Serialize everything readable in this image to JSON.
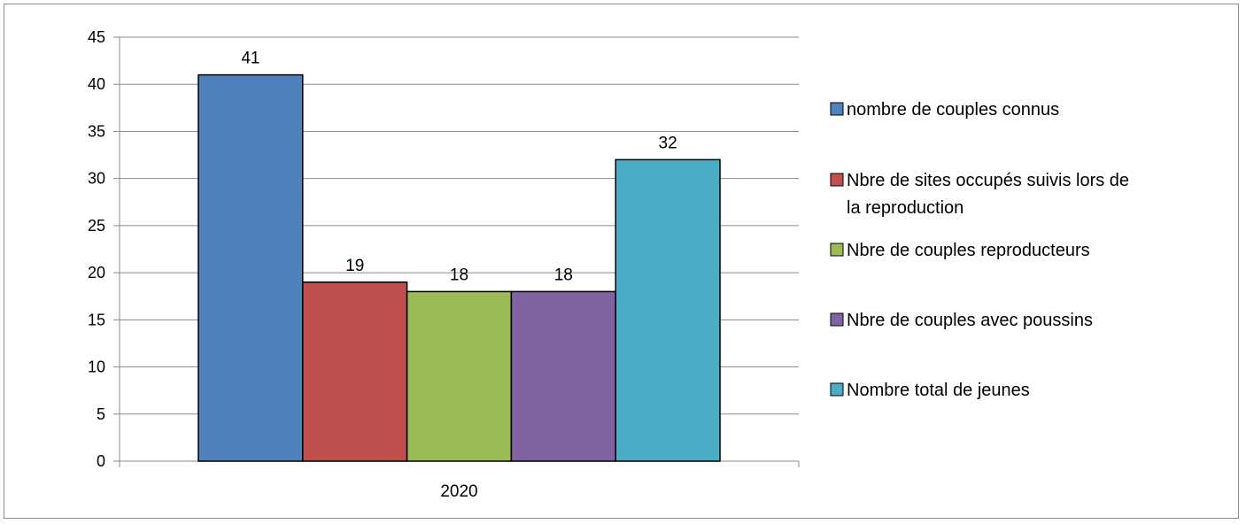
{
  "chart_data": {
    "type": "bar",
    "categories": [
      "2020"
    ],
    "series": [
      {
        "name": "nombre de couples connus",
        "values": [
          41
        ],
        "color": "#4F81BD"
      },
      {
        "name": "Nbre de sites occupés suivis lors de la reproduction",
        "values": [
          19
        ],
        "color": "#C0504D"
      },
      {
        "name": "Nbre de couples reproducteurs",
        "values": [
          18
        ],
        "color": "#9BBB59"
      },
      {
        "name": "Nbre de couples avec poussins",
        "values": [
          18
        ],
        "color": "#8064A2"
      },
      {
        "name": "Nombre total de jeunes",
        "values": [
          32
        ],
        "color": "#4BACC6"
      }
    ],
    "ylim": [
      0,
      45
    ],
    "ytick_step": 5,
    "grid": true,
    "data_labels": true,
    "legend": "right"
  }
}
